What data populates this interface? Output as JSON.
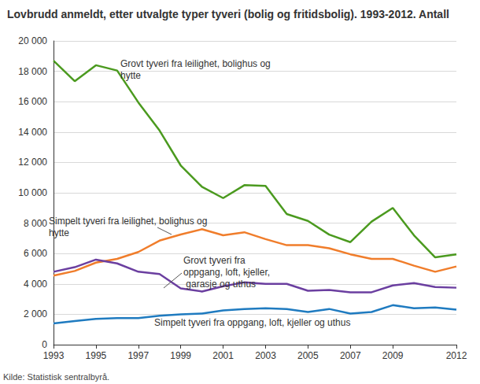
{
  "chart_data": {
    "type": "line",
    "title": "Lovbrudd anmeldt, etter utvalgte typer tyveri (bolig og fritidsbolig). 1993-2012. Antall",
    "source": "Kilde: Statistisk sentralbyrå.",
    "categories": [
      "1993",
      null,
      "1995",
      null,
      "1997",
      null,
      "1999",
      null,
      "2001",
      null,
      "2003",
      null,
      "2005",
      null,
      "2007",
      null,
      "2009",
      null,
      null,
      "2012"
    ],
    "series": [
      {
        "name": "Grovt tyveri fra leilighet, bolighus og hytte",
        "color": "#4b9a1f",
        "values": [
          18700,
          17350,
          18400,
          18050,
          15950,
          14100,
          11800,
          10400,
          9650,
          10500,
          10450,
          8600,
          8150,
          7250,
          6750,
          8100,
          9000,
          7200,
          5750,
          5950
        ]
      },
      {
        "name": "Simpelt tyveri fra leilighet, bolighus og hytte",
        "color": "#f07d2b",
        "values": [
          4550,
          4850,
          5400,
          5650,
          6100,
          6850,
          7250,
          7600,
          7200,
          7400,
          6950,
          6550,
          6550,
          6350,
          5950,
          5650,
          5650,
          5200,
          4800,
          5150
        ]
      },
      {
        "name": "Grovt tyveri fra oppgang, loft, kjeller, garasje og uthus",
        "color": "#6b3fa0",
        "values": [
          4800,
          5100,
          5600,
          5350,
          4800,
          4650,
          3700,
          3500,
          3850,
          4100,
          4000,
          4000,
          3550,
          3600,
          3450,
          3450,
          3900,
          4050,
          3800,
          3750
        ]
      },
      {
        "name": "Simpelt tyveri fra oppgang, loft, kjeller og uthus",
        "color": "#1f7bc0",
        "values": [
          1400,
          1550,
          1700,
          1750,
          1750,
          1900,
          2000,
          2050,
          2250,
          2350,
          2400,
          2350,
          2150,
          2350,
          2050,
          2150,
          2600,
          2400,
          2450,
          2300
        ]
      }
    ],
    "ylim": [
      0,
      20000
    ],
    "yticks": [
      0,
      {
        "value": 2000,
        "label": "2 000"
      },
      {
        "value": 4000,
        "label": "4 000"
      },
      {
        "value": 6000,
        "label": "6 000"
      },
      {
        "value": 8000,
        "label": "8 000"
      },
      {
        "value": 10000,
        "label": "10 000"
      },
      {
        "value": 12000,
        "label": "12 000"
      },
      {
        "value": 14000,
        "label": "14 000"
      },
      {
        "value": 16000,
        "label": "16 000"
      },
      {
        "value": 18000,
        "label": "18 000"
      },
      {
        "value": 20000,
        "label": "20 000"
      }
    ],
    "grid": true
  }
}
